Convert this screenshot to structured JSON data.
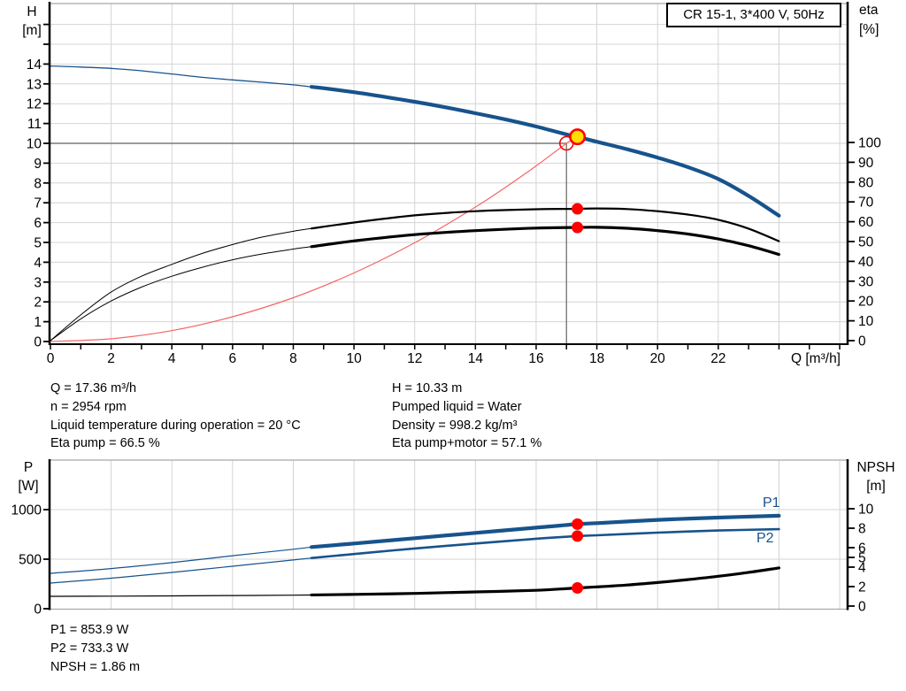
{
  "header": {
    "title_box": "CR 15-1, 3*400 V, 50Hz"
  },
  "colors": {
    "curve_blue": "#17538c",
    "curve_black": "#000000",
    "system_red": "#f26666",
    "marker_red": "#fe0000",
    "duty_yellow": "#ffdf00",
    "crosshair_gray": "#7a7a7a",
    "grid_gray": "#d4d4d4",
    "frame_gray": "#a8a8a8",
    "axis_black": "#000000",
    "label_blue": "#17538c"
  },
  "info_top": {
    "left": [
      "Q = 17.36 m³/h",
      "n = 2954 rpm",
      "Liquid temperature during operation = 20 °C",
      "Eta pump = 66.5 %"
    ],
    "right": [
      "H = 10.33 m",
      "Pumped liquid = Water",
      "Density = 998.2 kg/m³",
      "Eta pump+motor = 57.1 %"
    ]
  },
  "info_bottom": {
    "lines": [
      "P1 = 853.9 W",
      "P2 = 733.3 W",
      "NPSH = 1.86 m"
    ]
  },
  "chart_data": [
    {
      "id": "head-capacity-chart",
      "type": "line",
      "title": "CR 15-1, 3*400 V, 50Hz",
      "x_axis": {
        "label": "Q [m³/h]",
        "min": 0,
        "max": 26.3,
        "tick_labels": [
          0,
          2,
          4,
          6,
          8,
          10,
          12,
          14,
          16,
          18,
          20,
          22
        ],
        "minor_tick_step": 1,
        "grid_step": 2
      },
      "y_left": {
        "label": "H",
        "unit": "[m]",
        "min": 0,
        "max": 17,
        "tick_labels": [
          0,
          1,
          2,
          3,
          4,
          5,
          6,
          7,
          8,
          9,
          10,
          11,
          12,
          13,
          14
        ],
        "grid_step": 1
      },
      "y_right": {
        "label": "eta",
        "unit": "[%]",
        "min": 0,
        "max": 100,
        "tick_labels": [
          0,
          10,
          20,
          30,
          40,
          50,
          60,
          70,
          80,
          90,
          100
        ]
      },
      "requested_duty": {
        "q": 17,
        "h": 10
      },
      "duty_point": {
        "q": 17.36,
        "h": 10.33
      },
      "markers": [
        {
          "name": "eta-pump-point",
          "q": 17.36,
          "value": 66.5,
          "axis": "right"
        },
        {
          "name": "eta-pump-motor-point",
          "q": 17.36,
          "value": 57.1,
          "axis": "right"
        }
      ],
      "series": [
        {
          "name": "system-curve",
          "axis": "left",
          "color_key": "system_red",
          "width": 1.2,
          "points": [
            [
              0,
              0
            ],
            [
              2,
              0.14
            ],
            [
              4,
              0.55
            ],
            [
              6,
              1.25
            ],
            [
              8,
              2.21
            ],
            [
              10,
              3.46
            ],
            [
              12,
              4.98
            ],
            [
              14,
              6.78
            ],
            [
              15,
              7.79
            ],
            [
              16,
              8.86
            ],
            [
              17,
              10
            ],
            [
              17.36,
              10.33
            ]
          ]
        },
        {
          "name": "eta-pump-curve",
          "axis": "right",
          "color_key": "curve_black",
          "width": 2.2,
          "width_thin": 1,
          "bold_from": 8.6,
          "points": [
            [
              0,
              0
            ],
            [
              1,
              13
            ],
            [
              2,
              24.5
            ],
            [
              3,
              32.5
            ],
            [
              4,
              38.5
            ],
            [
              5,
              44
            ],
            [
              6,
              48.5
            ],
            [
              7,
              52.3
            ],
            [
              8,
              55.2
            ],
            [
              8.6,
              56.6
            ],
            [
              10,
              59.6
            ],
            [
              12,
              63.2
            ],
            [
              14,
              65.3
            ],
            [
              16,
              66.3
            ],
            [
              17.36,
              66.5
            ],
            [
              18,
              66.7
            ],
            [
              19,
              66.4
            ],
            [
              20,
              65.3
            ],
            [
              21,
              63.6
            ],
            [
              22,
              61
            ],
            [
              23,
              56.5
            ],
            [
              24,
              50.2
            ]
          ]
        },
        {
          "name": "eta-pump-motor-curve",
          "axis": "right",
          "color_key": "curve_black",
          "width": 3.2,
          "width_thin": 1,
          "bold_from": 8.6,
          "points": [
            [
              0,
              0
            ],
            [
              1,
              11
            ],
            [
              2,
              20
            ],
            [
              3,
              27
            ],
            [
              4,
              32.5
            ],
            [
              5,
              37
            ],
            [
              6,
              40.8
            ],
            [
              7,
              43.8
            ],
            [
              8,
              46.2
            ],
            [
              8.6,
              47.4
            ],
            [
              10,
              50.3
            ],
            [
              12,
              53.5
            ],
            [
              14,
              55.5
            ],
            [
              16,
              56.8
            ],
            [
              17.36,
              57.1
            ],
            [
              18,
              57.2
            ],
            [
              19,
              56.7
            ],
            [
              20,
              55.5
            ],
            [
              21,
              53.8
            ],
            [
              22,
              51.3
            ],
            [
              23,
              47.9
            ],
            [
              24,
              43.5
            ]
          ]
        },
        {
          "name": "pump-curve",
          "axis": "left",
          "color_key": "curve_blue",
          "width": 4.2,
          "width_thin": 1.3,
          "bold_from": 8.6,
          "points": [
            [
              0,
              13.9
            ],
            [
              1,
              13.85
            ],
            [
              2,
              13.78
            ],
            [
              3,
              13.66
            ],
            [
              4,
              13.5
            ],
            [
              5,
              13.33
            ],
            [
              6,
              13.2
            ],
            [
              7,
              13.08
            ],
            [
              8,
              12.95
            ],
            [
              8.6,
              12.85
            ],
            [
              9,
              12.78
            ],
            [
              10,
              12.58
            ],
            [
              11,
              12.35
            ],
            [
              12,
              12.1
            ],
            [
              13,
              11.82
            ],
            [
              14,
              11.52
            ],
            [
              15,
              11.2
            ],
            [
              16,
              10.85
            ],
            [
              17,
              10.45
            ],
            [
              17.36,
              10.33
            ],
            [
              18,
              10.08
            ],
            [
              19,
              9.7
            ],
            [
              20,
              9.28
            ],
            [
              21,
              8.8
            ],
            [
              22,
              8.2
            ],
            [
              23,
              7.35
            ],
            [
              24,
              6.35
            ]
          ]
        }
      ]
    },
    {
      "id": "power-npsh-chart",
      "type": "line",
      "x_axis": {
        "label": "",
        "min": 0,
        "max": 26.3,
        "grid_step": 2
      },
      "y_left": {
        "label": "P",
        "unit": "[W]",
        "min": 0,
        "max": 1500,
        "tick_labels": [
          0,
          500,
          1000
        ],
        "grid_step": 500
      },
      "y_right": {
        "label": "NPSH",
        "unit": "[m]",
        "min": 0,
        "max": 15,
        "tick_labels": [
          0,
          2,
          4,
          5,
          6,
          8,
          10
        ]
      },
      "markers": [
        {
          "name": "p1-point",
          "q": 17.36,
          "value": 853.9,
          "axis": "left"
        },
        {
          "name": "p2-point",
          "q": 17.36,
          "value": 733.3,
          "axis": "left"
        },
        {
          "name": "npsh-point",
          "q": 17.36,
          "value": 1.86,
          "axis": "right"
        }
      ],
      "series": [
        {
          "name": "npsh-curve",
          "axis": "right",
          "color_key": "curve_black",
          "width": 3.2,
          "width_thin": 1.2,
          "bold_from": 8.6,
          "points": [
            [
              0,
              1
            ],
            [
              2,
              1.02
            ],
            [
              4,
              1.05
            ],
            [
              6,
              1.08
            ],
            [
              8,
              1.12
            ],
            [
              8.6,
              1.14
            ],
            [
              10,
              1.2
            ],
            [
              12,
              1.3
            ],
            [
              14,
              1.45
            ],
            [
              16,
              1.62
            ],
            [
              17.36,
              1.86
            ],
            [
              18,
              1.97
            ],
            [
              19,
              2.16
            ],
            [
              20,
              2.42
            ],
            [
              21,
              2.72
            ],
            [
              22,
              3.06
            ],
            [
              23,
              3.46
            ],
            [
              24,
              3.92
            ]
          ]
        },
        {
          "name": "p2-curve",
          "axis": "left",
          "color_key": "curve_blue",
          "width": 2.6,
          "width_thin": 1.2,
          "bold_from": 8.6,
          "label": "P2",
          "points": [
            [
              0,
              259
            ],
            [
              2,
              308
            ],
            [
              4,
              366
            ],
            [
              6,
              429
            ],
            [
              8,
              492
            ],
            [
              8.6,
              512
            ],
            [
              10,
              552
            ],
            [
              12,
              608
            ],
            [
              14,
              658
            ],
            [
              16,
              706
            ],
            [
              17.36,
              733
            ],
            [
              18,
              741
            ],
            [
              20,
              768
            ],
            [
              22,
              789
            ],
            [
              24,
              803
            ]
          ]
        },
        {
          "name": "p1-curve",
          "axis": "left",
          "color_key": "curve_blue",
          "width": 4.2,
          "width_thin": 1.2,
          "bold_from": 8.6,
          "label": "P1",
          "points": [
            [
              0,
              357
            ],
            [
              2,
              405
            ],
            [
              4,
              465
            ],
            [
              6,
              535
            ],
            [
              8,
              600
            ],
            [
              8.6,
              622
            ],
            [
              10,
              658
            ],
            [
              12,
              712
            ],
            [
              14,
              765
            ],
            [
              16,
              818
            ],
            [
              17.36,
              854
            ],
            [
              18,
              863
            ],
            [
              20,
              896
            ],
            [
              22,
              920
            ],
            [
              24,
              938
            ]
          ]
        }
      ]
    }
  ]
}
